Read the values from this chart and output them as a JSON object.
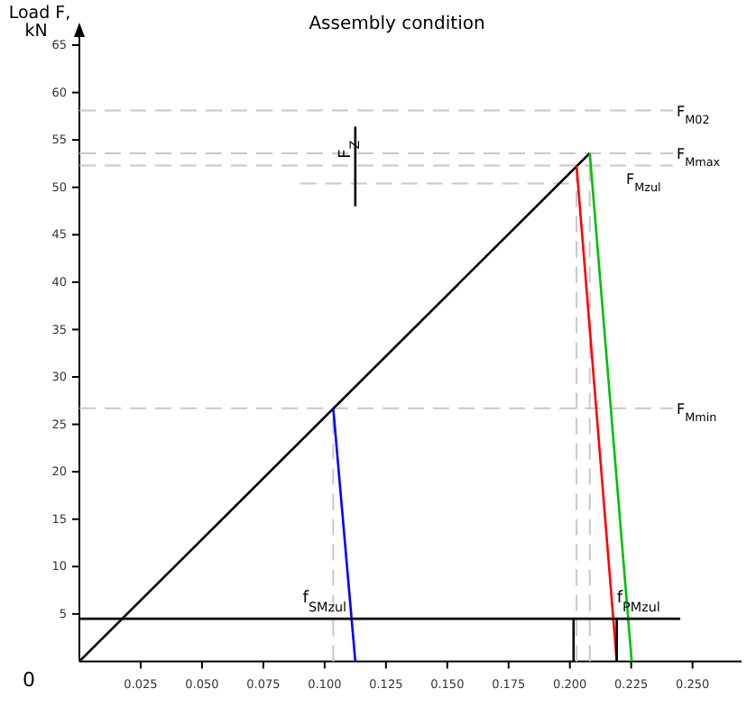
{
  "chart_data": {
    "type": "line",
    "title": "Assembly condition",
    "ylabel": "Load F, kN",
    "xlim": [
      0,
      0.27
    ],
    "ylim": [
      0,
      67
    ],
    "xticks": [
      {
        "value": 0.025,
        "label": "0.025"
      },
      {
        "value": 0.05,
        "label": "0.050"
      },
      {
        "value": 0.075,
        "label": "0.075"
      },
      {
        "value": 0.1,
        "label": "0.100"
      },
      {
        "value": 0.125,
        "label": "0.125"
      },
      {
        "value": 0.15,
        "label": "0.150"
      },
      {
        "value": 0.175,
        "label": "0.175"
      },
      {
        "value": 0.2,
        "label": "0.200"
      },
      {
        "value": 0.225,
        "label": "0.225"
      },
      {
        "value": 0.25,
        "label": "0.250"
      }
    ],
    "yticks": [
      5,
      10,
      15,
      20,
      25,
      30,
      35,
      40,
      45,
      50,
      55,
      60,
      65
    ],
    "grid": false,
    "marker": "none",
    "line_style": "solid",
    "ref_lines": [
      {
        "axis": "y",
        "value": 58.1,
        "label": "F$_{M02}$",
        "color": "#c8c8c8",
        "line_style": "dashed"
      },
      {
        "axis": "y",
        "value": 53.6,
        "label": "F$_{Mmax}$",
        "color": "#c8c8c8",
        "line_style": "dashed"
      },
      {
        "axis": "y",
        "value": 52.3,
        "label": "F$_{Mzul}$",
        "color": "#c8c8c8",
        "line_style": "dashed"
      },
      {
        "axis": "y",
        "value": 26.7,
        "label": "F$_{Mmin}$",
        "color": "#c8c8c8",
        "line_style": "dashed"
      }
    ],
    "series": [
      {
        "color": "#000000",
        "x": [
          0,
          0.2081
        ],
        "values": [
          0,
          53.6
        ]
      },
      {
        "color": "#ff0000",
        "x": [
          0.2027,
          0.2191
        ],
        "values": [
          52.3,
          0
        ]
      },
      {
        "color": "#00c000",
        "x": [
          0.2081,
          0.2252
        ],
        "values": [
          53.6,
          0
        ]
      },
      {
        "color": "#0000ff",
        "x": [
          0.1035,
          0.1125
        ],
        "values": [
          26.7,
          0
        ]
      },
      {
        "color": "#c8c8c8",
        "line_style": "dashed",
        "x": [
          0.1035,
          0.1035
        ],
        "values": [
          0,
          26.7
        ]
      },
      {
        "color": "#c8c8c8",
        "line_style": "dashed",
        "x": [
          0.2027,
          0.2027
        ],
        "values": [
          0,
          52.3
        ]
      },
      {
        "color": "#c8c8c8",
        "line_style": "dashed",
        "x": [
          0.2081,
          0.2081
        ],
        "values": [
          0,
          53.6
        ]
      },
      {
        "color": "#c8c8c8",
        "line_style": "dashed",
        "x": [
          0.09,
          0.2
        ],
        "values": [
          50.4,
          50.4
        ]
      },
      {
        "color": "#000000",
        "x": [
          0,
          0.245
        ],
        "values": [
          4.5,
          4.5
        ]
      },
      {
        "color": "#000000",
        "x": [
          0.2015,
          0.2015
        ],
        "values": [
          0,
          4.5
        ]
      },
      {
        "color": "#000000",
        "x": [
          0.2191,
          0.2191
        ],
        "values": [
          0,
          4.5
        ]
      },
      {
        "color": "#000000",
        "x": [
          0.1125,
          0.1125
        ],
        "values": [
          48,
          56.4
        ]
      }
    ],
    "annotations": [
      {
        "text": "0",
        "x": 0,
        "y": 0
      },
      {
        "text": "f$_{SMzul}$",
        "x": 0.1,
        "y": 4.5
      },
      {
        "text": "f$_{PMzul}$",
        "x": 0.228,
        "y": 4.5
      },
      {
        "text": "F$_{Z}$",
        "x": 0.1125,
        "y": 54
      }
    ]
  }
}
